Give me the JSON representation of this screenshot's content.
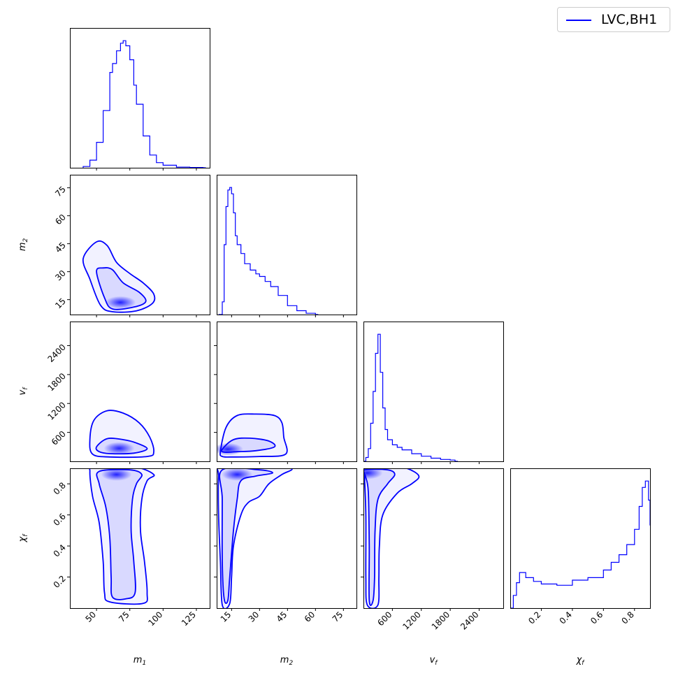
{
  "chart_data": {
    "type": "corner",
    "color": "#0000ff",
    "legend": {
      "label": "LVC,BH1",
      "placement": "top-right"
    },
    "parameters": [
      {
        "key": "m1",
        "label": "m",
        "sub": "1",
        "range": [
          30,
          135
        ],
        "ticks": [
          50,
          75,
          100,
          125
        ]
      },
      {
        "key": "m2",
        "label": "m",
        "sub": "2",
        "range": [
          7,
          82
        ],
        "ticks": [
          15,
          30,
          45,
          60,
          75
        ]
      },
      {
        "key": "vf",
        "label": "v",
        "sub": "f",
        "range": [
          0,
          2900
        ],
        "ticks": [
          600,
          1200,
          1800,
          2400
        ]
      },
      {
        "key": "chif",
        "label": "χ",
        "sub": "f",
        "range": [
          0,
          0.9
        ],
        "ticks": [
          0.2,
          0.4,
          0.6,
          0.8
        ]
      }
    ],
    "histograms": {
      "m1": {
        "x": [
          40,
          45,
          50,
          55,
          60,
          62,
          65,
          68,
          70,
          72,
          75,
          78,
          80,
          85,
          90,
          95,
          100,
          110,
          120,
          130
        ],
        "y": [
          0.01,
          0.06,
          0.2,
          0.45,
          0.75,
          0.82,
          0.92,
          0.98,
          1.0,
          0.96,
          0.85,
          0.65,
          0.5,
          0.25,
          0.1,
          0.04,
          0.02,
          0.005,
          0.002,
          0
        ]
      },
      "m2": {
        "x": [
          8,
          10,
          11,
          12,
          13,
          14,
          15,
          16,
          17,
          18,
          20,
          22,
          25,
          28,
          30,
          33,
          36,
          40,
          45,
          50,
          55,
          60
        ],
        "y": [
          0,
          0.1,
          0.55,
          0.85,
          0.98,
          1.0,
          0.95,
          0.8,
          0.62,
          0.55,
          0.48,
          0.4,
          0.35,
          0.32,
          0.3,
          0.26,
          0.22,
          0.15,
          0.07,
          0.03,
          0.01,
          0
        ]
      },
      "vf": {
        "x": [
          0,
          50,
          100,
          150,
          200,
          250,
          300,
          350,
          400,
          450,
          500,
          600,
          700,
          800,
          1000,
          1200,
          1400,
          1600,
          1800,
          1900
        ],
        "y": [
          0,
          0.03,
          0.1,
          0.3,
          0.55,
          0.85,
          1.0,
          0.7,
          0.42,
          0.25,
          0.17,
          0.13,
          0.11,
          0.09,
          0.06,
          0.04,
          0.025,
          0.015,
          0.01,
          0
        ]
      },
      "chif": {
        "x": [
          0,
          0.02,
          0.04,
          0.06,
          0.1,
          0.15,
          0.2,
          0.3,
          0.4,
          0.45,
          0.5,
          0.6,
          0.65,
          0.7,
          0.75,
          0.8,
          0.83,
          0.85,
          0.87,
          0.89,
          0.9
        ],
        "y": [
          0,
          0.1,
          0.2,
          0.28,
          0.24,
          0.21,
          0.19,
          0.18,
          0.22,
          0.22,
          0.24,
          0.3,
          0.36,
          0.42,
          0.5,
          0.62,
          0.8,
          0.95,
          1.0,
          0.85,
          0.65
        ]
      }
    },
    "contours": {
      "m2|m1": {
        "peak": [
          68,
          13.5
        ],
        "levels": [
          [
            [
              40,
              37
            ],
            [
              50,
              46
            ],
            [
              58,
              44
            ],
            [
              65,
              35
            ],
            [
              75,
              29
            ],
            [
              85,
              24
            ],
            [
              93,
              18
            ],
            [
              92,
              13
            ],
            [
              80,
              9
            ],
            [
              62,
              8.5
            ],
            [
              53,
              12
            ],
            [
              45,
              26
            ]
          ],
          [
            [
              50,
              30
            ],
            [
              55,
              32
            ],
            [
              62,
              31
            ],
            [
              70,
              24
            ],
            [
              82,
              19
            ],
            [
              87,
              14
            ],
            [
              78,
              11
            ],
            [
              62,
              10
            ],
            [
              56,
              16
            ]
          ]
        ]
      },
      "vf|m1": {
        "peak": [
          67,
          270
        ],
        "levels": [
          [
            [
              45,
              450
            ],
            [
              48,
              850
            ],
            [
              58,
              1050
            ],
            [
              70,
              1000
            ],
            [
              82,
              800
            ],
            [
              90,
              500
            ],
            [
              93,
              200
            ],
            [
              88,
              100
            ],
            [
              60,
              90
            ],
            [
              47,
              150
            ]
          ],
          [
            [
              50,
              300
            ],
            [
              58,
              470
            ],
            [
              70,
              450
            ],
            [
              80,
              380
            ],
            [
              88,
              260
            ],
            [
              78,
              170
            ],
            [
              60,
              160
            ],
            [
              52,
              200
            ]
          ]
        ]
      },
      "vf|m2": {
        "peak": [
          13,
          250
        ],
        "levels": [
          [
            [
              9,
              200
            ],
            [
              12,
              700
            ],
            [
              18,
              950
            ],
            [
              28,
              980
            ],
            [
              38,
              950
            ],
            [
              42,
              800
            ],
            [
              43,
              500
            ],
            [
              44,
              150
            ],
            [
              30,
              100
            ],
            [
              15,
              90
            ],
            [
              10,
              100
            ]
          ],
          [
            [
              10,
              250
            ],
            [
              16,
              450
            ],
            [
              25,
              480
            ],
            [
              35,
              420
            ],
            [
              38,
              300
            ],
            [
              28,
              220
            ],
            [
              18,
              200
            ],
            [
              11,
              190
            ]
          ]
        ]
      },
      "chif|m1": {
        "peak": [
          65,
          0.86
        ],
        "levels": [
          [
            [
              48,
              0.91
            ],
            [
              78,
              0.91
            ],
            [
              93,
              0.86
            ],
            [
              88,
              0.82
            ],
            [
              84,
              0.7
            ],
            [
              83,
              0.5
            ],
            [
              86,
              0.3
            ],
            [
              88,
              0.1
            ],
            [
              85,
              0.03
            ],
            [
              60,
              0.04
            ],
            [
              56,
              0.1
            ],
            [
              55,
              0.3
            ],
            [
              52,
              0.55
            ],
            [
              47,
              0.72
            ],
            [
              45,
              0.88
            ]
          ],
          [
            [
              52,
              0.88
            ],
            [
              75,
              0.89
            ],
            [
              84,
              0.86
            ],
            [
              80,
              0.8
            ],
            [
              77,
              0.7
            ],
            [
              76,
              0.5
            ],
            [
              78,
              0.3
            ],
            [
              79,
              0.1
            ],
            [
              72,
              0.06
            ],
            [
              62,
              0.07
            ],
            [
              61,
              0.2
            ],
            [
              60,
              0.45
            ],
            [
              57,
              0.65
            ],
            [
              52,
              0.8
            ]
          ]
        ]
      },
      "chif|m2": {
        "peak": [
          18,
          0.86
        ],
        "levels": [
          [
            [
              9,
              0.92
            ],
            [
              30,
              0.92
            ],
            [
              47,
              0.9
            ],
            [
              42,
              0.86
            ],
            [
              35,
              0.8
            ],
            [
              30,
              0.72
            ],
            [
              24,
              0.68
            ],
            [
              20,
              0.6
            ],
            [
              16,
              0.4
            ],
            [
              15,
              0.2
            ],
            [
              14,
              0.03
            ],
            [
              10,
              0.02
            ],
            [
              9,
              0.3
            ],
            [
              8,
              0.6
            ],
            [
              8,
              0.85
            ]
          ],
          [
            [
              10,
              0.89
            ],
            [
              30,
              0.89
            ],
            [
              37,
              0.87
            ],
            [
              28,
              0.85
            ],
            [
              20,
              0.82
            ],
            [
              18,
              0.7
            ],
            [
              16,
              0.5
            ],
            [
              14,
              0.2
            ],
            [
              13,
              0.05
            ],
            [
              11,
              0.06
            ],
            [
              10,
              0.3
            ],
            [
              10,
              0.7
            ]
          ]
        ]
      },
      "chif|vf": {
        "peak": [
          80,
          0.87
        ],
        "levels": [
          [
            [
              10,
              0.92
            ],
            [
              500,
              0.92
            ],
            [
              900,
              0.9
            ],
            [
              1150,
              0.85
            ],
            [
              1000,
              0.8
            ],
            [
              700,
              0.74
            ],
            [
              400,
              0.6
            ],
            [
              330,
              0.4
            ],
            [
              320,
              0.2
            ],
            [
              300,
              0.02
            ],
            [
              80,
              0.02
            ],
            [
              50,
              0.2
            ],
            [
              50,
              0.6
            ],
            [
              20,
              0.85
            ]
          ],
          [
            [
              20,
              0.89
            ],
            [
              500,
              0.89
            ],
            [
              650,
              0.86
            ],
            [
              500,
              0.8
            ],
            [
              300,
              0.7
            ],
            [
              240,
              0.5
            ],
            [
              230,
              0.2
            ],
            [
              200,
              0.05
            ],
            [
              120,
              0.05
            ],
            [
              120,
              0.4
            ],
            [
              100,
              0.75
            ],
            [
              40,
              0.85
            ]
          ]
        ]
      }
    }
  }
}
